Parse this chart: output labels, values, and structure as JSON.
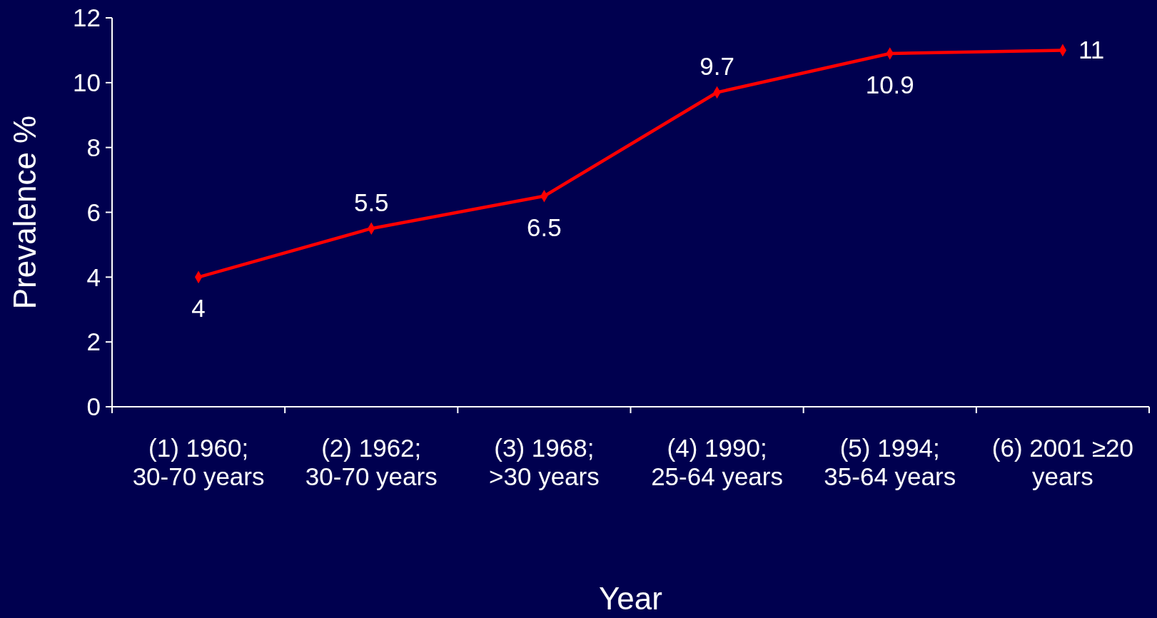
{
  "chart_data": {
    "type": "line",
    "xlabel": "Year",
    "ylabel": "Prevalence %",
    "categories": [
      "(1) 1960; 30-70 years",
      "(2) 1962; 30-70 years",
      "(3) 1968; >30 years",
      "(4) 1990; 25-64 years",
      "(5) 1994; 35-64 years",
      "(6) 2001 ≥20 years"
    ],
    "series": [
      {
        "color": "#ff0000",
        "values": [
          4,
          5.5,
          6.5,
          9.7,
          10.9,
          11
        ]
      }
    ],
    "ylim": [
      0,
      12
    ],
    "yticks": [
      0,
      2,
      4,
      6,
      8,
      10,
      12
    ],
    "data_labels": true,
    "marker": "diamond",
    "line_style": "solid",
    "grid": false
  }
}
